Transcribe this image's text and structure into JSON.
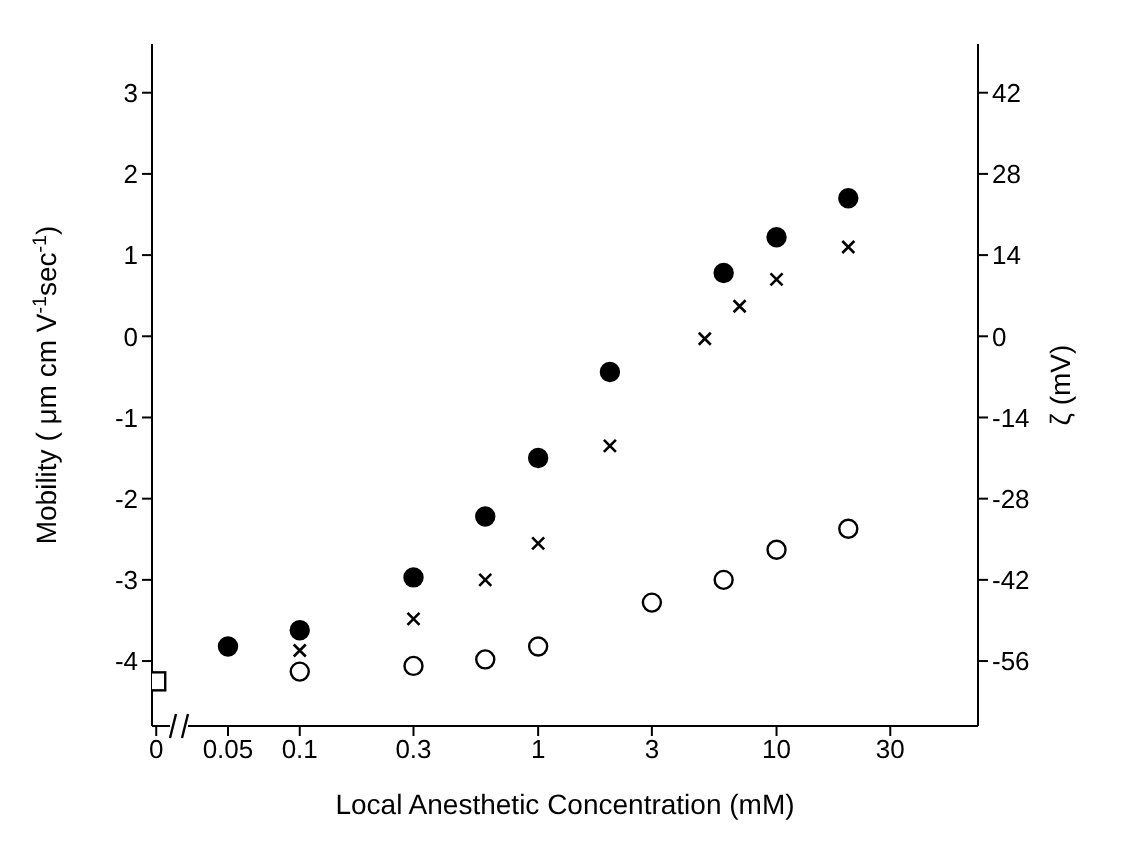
{
  "chart_data": {
    "type": "scatter",
    "xlabel": "Local Anesthetic Concentration     (mM)",
    "ylabel": "Mobility ( μm cm  V$^{-1}$sec$^{-1}$)",
    "y2label": "ζ (mV)",
    "log": "x",
    "xlim": [
      0.024,
      70
    ],
    "xticks": [
      {
        "value": 0.025,
        "label": "0"
      },
      0.05,
      0.1,
      0.3,
      1,
      3,
      10,
      30
    ],
    "ylim": [
      -4.8,
      3.6
    ],
    "yticks": [
      -4,
      -3,
      -2,
      -1,
      0,
      1,
      2,
      3
    ],
    "y2lim": [
      -67.2,
      50.4
    ],
    "y2ticks": [
      -56,
      -42,
      -28,
      -14,
      0,
      14,
      28,
      42
    ],
    "series": [
      {
        "color": "#000000",
        "marker": "circle",
        "x": [
          0.05,
          0.1,
          0.3,
          0.6,
          1,
          2,
          6,
          10,
          20
        ],
        "values": [
          -3.82,
          -3.62,
          -2.97,
          -2.22,
          -1.5,
          -0.44,
          0.78,
          1.22,
          1.7
        ]
      },
      {
        "color": "#000000",
        "marker": "cross",
        "x": [
          0.1,
          0.3,
          0.6,
          1,
          2,
          5,
          7,
          10,
          20
        ],
        "values": [
          -3.87,
          -3.48,
          -3.0,
          -2.55,
          -1.35,
          -0.03,
          0.37,
          0.7,
          1.1
        ]
      },
      {
        "color": "#ffffff",
        "marker": "circle",
        "x": [
          0.1,
          0.3,
          0.6,
          1,
          3,
          6,
          10,
          20
        ],
        "values": [
          -4.13,
          -4.06,
          -3.98,
          -3.82,
          -3.28,
          -3.0,
          -2.63,
          -2.37
        ]
      },
      {
        "color": "#ffffff",
        "marker": "square",
        "x": [
          0.025
        ],
        "values": [
          -4.25
        ]
      }
    ]
  }
}
